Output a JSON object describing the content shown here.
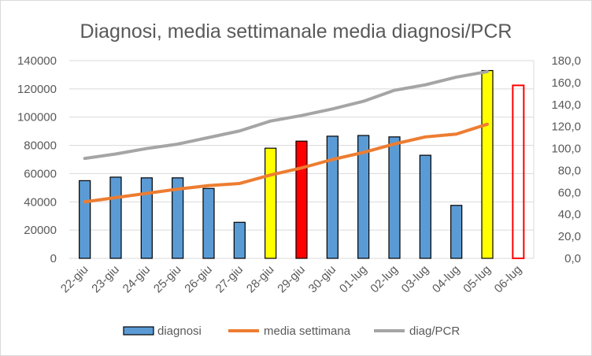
{
  "chart_data": {
    "type": "bar",
    "title": "Diagnosi, media settimanale media diagnosi/PCR",
    "categories": [
      "22-giu",
      "23-giu",
      "24-giu",
      "25-giu",
      "26-giu",
      "27-giu",
      "28-giu",
      "29-giu",
      "30-giu",
      "01-lug",
      "02-lug",
      "03-lug",
      "04-lug",
      "05-lug",
      "06-lug"
    ],
    "y_left": {
      "min": 0,
      "max": 140000,
      "step": 20000,
      "ticks": [
        "0",
        "20000",
        "40000",
        "60000",
        "80000",
        "100000",
        "120000",
        "140000"
      ]
    },
    "y_right": {
      "min": 0,
      "max": 180,
      "step": 20,
      "ticks": [
        "0,0",
        "20,0",
        "40,0",
        "60,0",
        "80,0",
        "100,0",
        "120,0",
        "140,0",
        "160,0",
        "180,0"
      ]
    },
    "grid": true,
    "legend_position": "bottom",
    "series": [
      {
        "name": "diagnosi",
        "type": "bar",
        "axis": "left",
        "color": "#5b9bd5",
        "values": [
          55000,
          57500,
          57000,
          57000,
          49500,
          25500,
          78000,
          83000,
          86500,
          87000,
          86000,
          73000,
          37500,
          133000,
          122500
        ],
        "bar_colors": [
          "#5b9bd5",
          "#5b9bd5",
          "#5b9bd5",
          "#5b9bd5",
          "#5b9bd5",
          "#5b9bd5",
          "#ffff00",
          "#ff0000",
          "#5b9bd5",
          "#5b9bd5",
          "#5b9bd5",
          "#5b9bd5",
          "#5b9bd5",
          "#ffff00",
          "none"
        ],
        "bar_outline": [
          "#000000",
          "#000000",
          "#000000",
          "#000000",
          "#000000",
          "#000000",
          "#000000",
          "#000000",
          "#000000",
          "#000000",
          "#000000",
          "#000000",
          "#000000",
          "#000000",
          "#ff0000"
        ]
      },
      {
        "name": "media settimana",
        "type": "line",
        "axis": "left",
        "color": "#ed7d31",
        "values": [
          40000,
          43000,
          46000,
          49000,
          51500,
          53000,
          59000,
          64000,
          70000,
          75000,
          81000,
          86000,
          88000,
          95000,
          null
        ]
      },
      {
        "name": "diag/PCR",
        "type": "line",
        "axis": "right",
        "color": "#a5a5a5",
        "values": [
          91,
          95,
          100,
          104,
          110,
          116,
          125,
          130,
          136,
          143,
          153,
          158,
          165,
          170,
          null
        ]
      }
    ]
  }
}
